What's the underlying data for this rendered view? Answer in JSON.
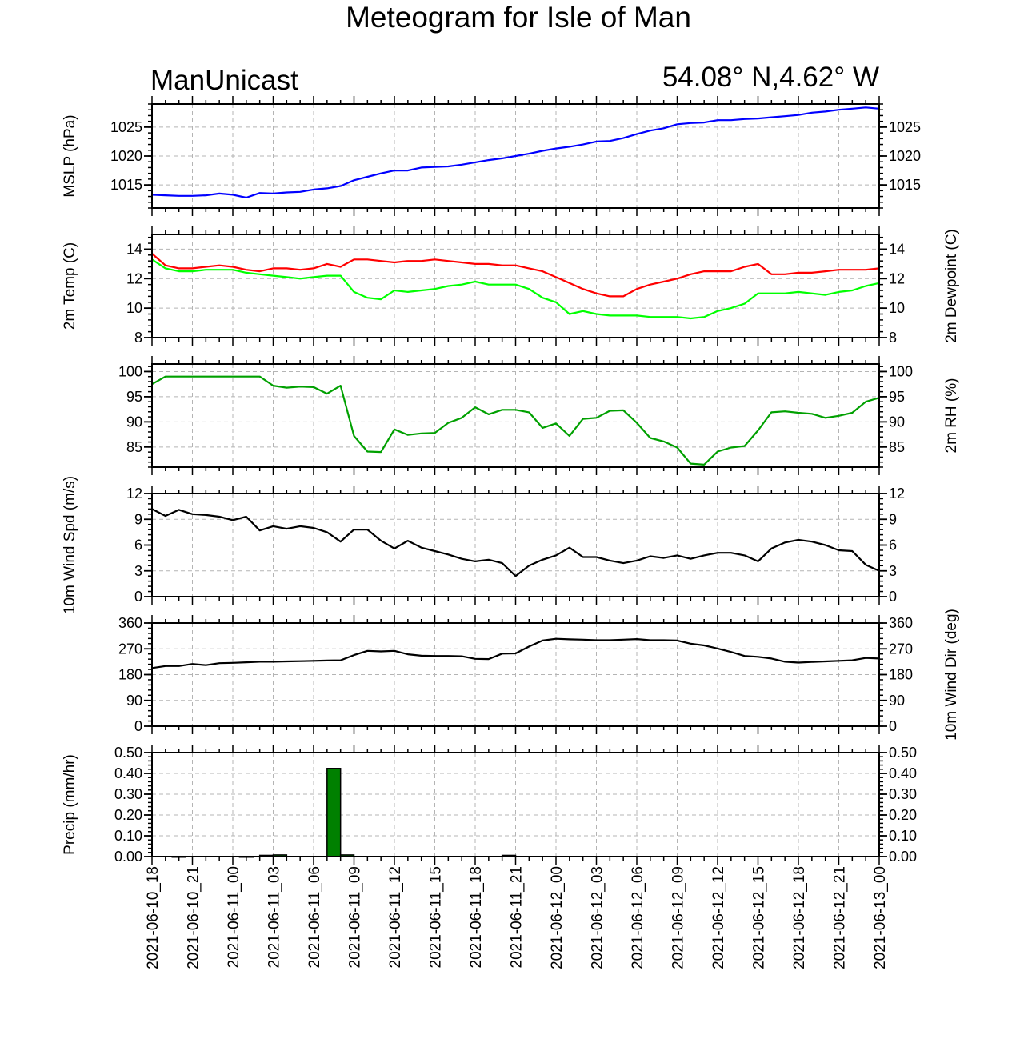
{
  "header": {
    "title": "Meteogram for Isle of Man",
    "model": "ManUnicast",
    "location": "54.08° N,4.62° W"
  },
  "time_labels": [
    "2021-06-10_18",
    "2021-06-10_21",
    "2021-06-11_00",
    "2021-06-11_03",
    "2021-06-11_06",
    "2021-06-11_09",
    "2021-06-11_12",
    "2021-06-11_15",
    "2021-06-11_18",
    "2021-06-11_21",
    "2021-06-12_00",
    "2021-06-12_03",
    "2021-06-12_06",
    "2021-06-12_09",
    "2021-06-12_12",
    "2021-06-12_15",
    "2021-06-12_18",
    "2021-06-12_21",
    "2021-06-13_00"
  ],
  "colors": {
    "mslp": "#0000ff",
    "temp": "#ff0000",
    "dewpoint": "#00ff00",
    "rh": "#00a000",
    "wind": "#000000",
    "precip_fill": "#008000",
    "grid": "#b4b4b4"
  },
  "chart_data": [
    {
      "type": "line",
      "name": "mslp",
      "ylabel_left": "MSLP (hPa)",
      "ylabel_right": "",
      "ylim": [
        1011,
        1029
      ],
      "yticks": [
        1015,
        1020,
        1025
      ],
      "tick_labels": [
        "1015",
        "1020",
        "1025"
      ],
      "x_hours": [
        0,
        1,
        2,
        3,
        4,
        5,
        6,
        7,
        8,
        9,
        10,
        11,
        12,
        13,
        14,
        15,
        16,
        17,
        18,
        19,
        20,
        21,
        22,
        23,
        24,
        25,
        26,
        27,
        28,
        29,
        30,
        31,
        32,
        33,
        34,
        35,
        36,
        37,
        38,
        39,
        40,
        41,
        42,
        43,
        44,
        45,
        46,
        47,
        48,
        49,
        50,
        51,
        52,
        53,
        54
      ],
      "series": [
        {
          "values": [
            1013.3,
            1013.2,
            1013.1,
            1013.1,
            1013.2,
            1013.5,
            1013.3,
            1012.8,
            1013.6,
            1013.5,
            1013.7,
            1013.8,
            1014.2,
            1014.4,
            1014.8,
            1015.8,
            1016.4,
            1017.0,
            1017.5,
            1017.5,
            1018.0,
            1018.1,
            1018.2,
            1018.5,
            1018.9,
            1019.3,
            1019.6,
            1020.0,
            1020.4,
            1020.9,
            1021.3,
            1021.6,
            1022.0,
            1022.5,
            1022.6,
            1023.1,
            1023.8,
            1024.4,
            1024.8,
            1025.5,
            1025.7,
            1025.8,
            1026.2,
            1026.2,
            1026.4,
            1026.5,
            1026.7,
            1026.9,
            1027.1,
            1027.5,
            1027.7,
            1028.0,
            1028.2,
            1028.4,
            1028.2
          ]
        }
      ]
    },
    {
      "type": "line",
      "name": "temp-dewpoint",
      "ylabel_left": "2m Temp (C)",
      "ylabel_right": "2m Dewpoint (C)",
      "ylim": [
        8,
        15
      ],
      "yticks": [
        8,
        10,
        12,
        14
      ],
      "tick_labels": [
        "8",
        "10",
        "12",
        "14"
      ],
      "x_hours": [
        0,
        1,
        2,
        3,
        4,
        5,
        6,
        7,
        8,
        9,
        10,
        11,
        12,
        13,
        14,
        15,
        16,
        17,
        18,
        19,
        20,
        21,
        22,
        23,
        24,
        25,
        26,
        27,
        28,
        29,
        30,
        31,
        32,
        33,
        34,
        35,
        36,
        37,
        38,
        39,
        40,
        41,
        42,
        43,
        44,
        45,
        46,
        47,
        48,
        49,
        50,
        51,
        52,
        53,
        54
      ],
      "series": [
        {
          "values": [
            13.7,
            12.9,
            12.7,
            12.7,
            12.8,
            12.9,
            12.8,
            12.6,
            12.5,
            12.7,
            12.7,
            12.6,
            12.7,
            13.0,
            12.8,
            13.3,
            13.3,
            13.2,
            13.1,
            13.2,
            13.2,
            13.3,
            13.2,
            13.1,
            13.0,
            13.0,
            12.9,
            12.9,
            12.7,
            12.5,
            12.1,
            11.7,
            11.3,
            11.0,
            10.8,
            10.8,
            11.3,
            11.6,
            11.8,
            12.0,
            12.3,
            12.5,
            12.5,
            12.5,
            12.8,
            13.0,
            12.3,
            12.3,
            12.4,
            12.4,
            12.5,
            12.6,
            12.6,
            12.6,
            12.7
          ]
        },
        {
          "values": [
            13.3,
            12.7,
            12.5,
            12.5,
            12.6,
            12.6,
            12.6,
            12.4,
            12.3,
            12.2,
            12.1,
            12.0,
            12.1,
            12.2,
            12.2,
            11.1,
            10.7,
            10.6,
            11.2,
            11.1,
            11.2,
            11.3,
            11.5,
            11.6,
            11.8,
            11.6,
            11.6,
            11.6,
            11.3,
            10.7,
            10.4,
            9.6,
            9.8,
            9.6,
            9.5,
            9.5,
            9.5,
            9.4,
            9.4,
            9.4,
            9.3,
            9.4,
            9.8,
            10.0,
            10.3,
            11.0,
            11.0,
            11.0,
            11.1,
            11.0,
            10.9,
            11.1,
            11.2,
            11.5,
            11.7
          ]
        }
      ]
    },
    {
      "type": "line",
      "name": "rh",
      "ylabel_left": "",
      "ylabel_right": "2m RH (%)",
      "ylim": [
        81,
        101.5
      ],
      "yticks": [
        85,
        90,
        95,
        100
      ],
      "tick_labels": [
        "85",
        "90",
        "95",
        "100"
      ],
      "x_hours": [
        0,
        1,
        2,
        3,
        4,
        5,
        6,
        7,
        8,
        9,
        10,
        11,
        12,
        13,
        14,
        15,
        16,
        17,
        18,
        19,
        20,
        21,
        22,
        23,
        24,
        25,
        26,
        27,
        28,
        29,
        30,
        31,
        32,
        33,
        34,
        35,
        36,
        37,
        38,
        39,
        40,
        41,
        42,
        43,
        44,
        45,
        46,
        47,
        48,
        49,
        50,
        51,
        52,
        53,
        54
      ],
      "series": [
        {
          "values": [
            97.5,
            99.0,
            99.0,
            99.0,
            99.0,
            99.0,
            99.0,
            99.0,
            99.0,
            97.2,
            96.8,
            97.0,
            96.9,
            95.6,
            97.2,
            87.2,
            84.1,
            84.0,
            88.5,
            87.4,
            87.7,
            87.8,
            89.8,
            90.8,
            92.9,
            91.5,
            92.4,
            92.4,
            91.9,
            88.8,
            89.7,
            87.2,
            90.6,
            90.8,
            92.2,
            92.3,
            89.8,
            86.8,
            86.1,
            84.9,
            81.7,
            81.5,
            84.1,
            84.9,
            85.2,
            88.3,
            91.9,
            92.1,
            91.8,
            91.6,
            90.8,
            91.2,
            91.8,
            94.0,
            94.8
          ]
        }
      ]
    },
    {
      "type": "line",
      "name": "wind-speed",
      "ylabel_left": "10m Wind Spd (m/s)",
      "ylabel_right": "",
      "ylim": [
        0,
        12
      ],
      "yticks": [
        0,
        3,
        6,
        9,
        12
      ],
      "tick_labels": [
        "0",
        "3",
        "6",
        "9",
        "12"
      ],
      "x_hours": [
        0,
        1,
        2,
        3,
        4,
        5,
        6,
        7,
        8,
        9,
        10,
        11,
        12,
        13,
        14,
        15,
        16,
        17,
        18,
        19,
        20,
        21,
        22,
        23,
        24,
        25,
        26,
        27,
        28,
        29,
        30,
        31,
        32,
        33,
        34,
        35,
        36,
        37,
        38,
        39,
        40,
        41,
        42,
        43,
        44,
        45,
        46,
        47,
        48,
        49,
        50,
        51,
        52,
        53,
        54
      ],
      "series": [
        {
          "values": [
            10.2,
            9.4,
            10.1,
            9.6,
            9.5,
            9.3,
            8.9,
            9.3,
            7.7,
            8.2,
            7.9,
            8.2,
            8.0,
            7.5,
            6.4,
            7.8,
            7.8,
            6.5,
            5.6,
            6.5,
            5.7,
            5.3,
            4.9,
            4.4,
            4.1,
            4.3,
            3.9,
            2.4,
            3.6,
            4.3,
            4.8,
            5.7,
            4.6,
            4.6,
            4.2,
            3.9,
            4.2,
            4.7,
            4.5,
            4.8,
            4.4,
            4.8,
            5.1,
            5.1,
            4.8,
            4.1,
            5.6,
            6.3,
            6.6,
            6.4,
            6.0,
            5.4,
            5.3,
            3.7,
            3.0
          ]
        }
      ]
    },
    {
      "type": "line",
      "name": "wind-direction",
      "ylabel_left": "",
      "ylabel_right": "10m Wind Dir (deg)",
      "ylim": [
        0,
        360
      ],
      "yticks": [
        0,
        90,
        180,
        270,
        360
      ],
      "tick_labels": [
        "0",
        "90",
        "180",
        "270",
        "360"
      ],
      "x_hours": [
        0,
        1,
        2,
        3,
        4,
        5,
        6,
        7,
        8,
        9,
        10,
        11,
        12,
        13,
        14,
        15,
        16,
        17,
        18,
        19,
        20,
        21,
        22,
        23,
        24,
        25,
        26,
        27,
        28,
        29,
        30,
        31,
        32,
        33,
        34,
        35,
        36,
        37,
        38,
        39,
        40,
        41,
        42,
        43,
        44,
        45,
        46,
        47,
        48,
        49,
        50,
        51,
        52,
        53,
        54
      ],
      "series": [
        {
          "values": [
            203,
            210,
            210,
            217,
            213,
            220,
            221,
            223,
            225,
            225,
            226,
            227,
            228,
            229,
            230,
            248,
            263,
            261,
            263,
            251,
            246,
            245,
            245,
            244,
            235,
            234,
            253,
            254,
            278,
            299,
            305,
            303,
            302,
            300,
            300,
            302,
            304,
            300,
            300,
            299,
            288,
            282,
            271,
            259,
            245,
            242,
            236,
            225,
            222,
            224,
            226,
            228,
            230,
            238,
            236
          ]
        }
      ]
    },
    {
      "type": "bar",
      "name": "precip",
      "ylabel_left": "Precip (mm/hr)",
      "ylabel_right": "",
      "ylim": [
        0,
        0.5
      ],
      "yticks": [
        0,
        0.1,
        0.2,
        0.3,
        0.4,
        0.5
      ],
      "tick_labels": [
        "0.00",
        "0.10",
        "0.20",
        "0.30",
        "0.40",
        "0.50"
      ],
      "bars": [
        {
          "hour": 2,
          "value": 0.001
        },
        {
          "hour": 7,
          "value": 0.001
        },
        {
          "hour": 8.5,
          "value": 0.006
        },
        {
          "hour": 9.5,
          "value": 0.008
        },
        {
          "hour": 13.5,
          "value": 0.424
        },
        {
          "hour": 14.5,
          "value": 0.008
        },
        {
          "hour": 26.5,
          "value": 0.006
        }
      ]
    }
  ]
}
